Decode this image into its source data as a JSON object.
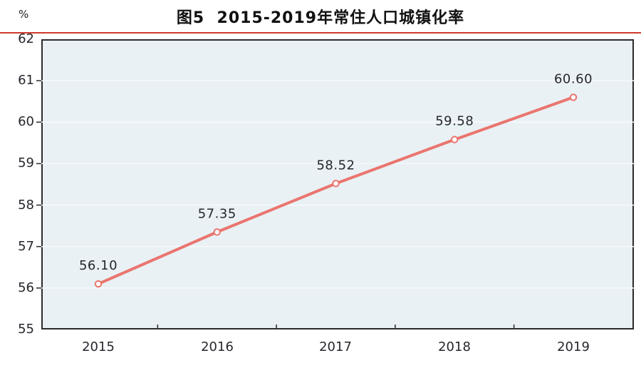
{
  "chart_data": {
    "type": "line",
    "title": "图5  2015-2019年常住人口城镇化率",
    "xlabel": "",
    "ylabel": "%",
    "categories": [
      "2015",
      "2016",
      "2017",
      "2018",
      "2019"
    ],
    "values": [
      56.1,
      57.35,
      58.52,
      59.58,
      60.6
    ],
    "point_labels": [
      "56.10",
      "57.35",
      "58.52",
      "59.58",
      "60.60"
    ],
    "yticks": [
      62,
      61,
      60,
      59,
      58,
      57,
      56,
      55
    ],
    "ylim": [
      55,
      62
    ],
    "grid": true,
    "legend": "none",
    "colors": {
      "line": "#ea756e",
      "marker_fill": "#ffffff",
      "plot_background": "#e9f1f5",
      "gridline": "#f7fafb",
      "axis_border": "#2b2b2b",
      "text": "#26262e",
      "title_divider": "#cd3a2e"
    }
  }
}
